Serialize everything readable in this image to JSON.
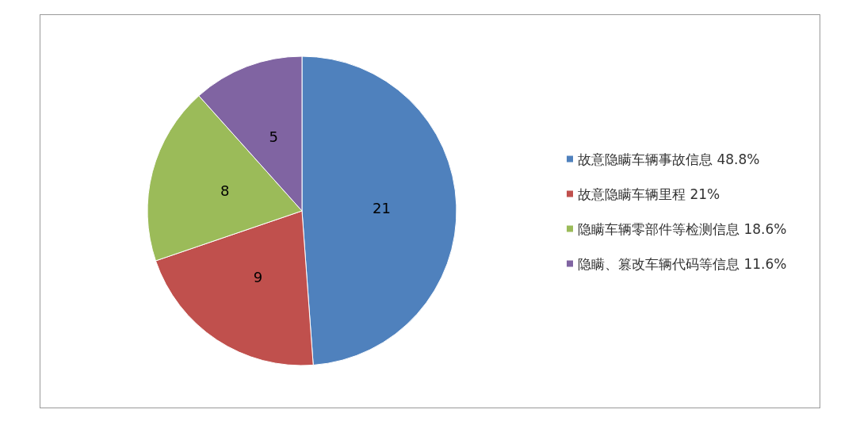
{
  "chart_data": {
    "type": "pie",
    "categories": [
      "故意隐瞒车辆事故信息 48.8%",
      "故意隐瞒车辆里程 21%",
      "隐瞒车辆零部件等检测信息 18.6%",
      "隐瞒、篡改车辆代码等信息 11.6%"
    ],
    "values": [
      21,
      9,
      8,
      5
    ],
    "colors": [
      "#4f81bd",
      "#c0504d",
      "#9bbb59",
      "#8064a2"
    ],
    "data_labels": true,
    "legend": "right"
  }
}
